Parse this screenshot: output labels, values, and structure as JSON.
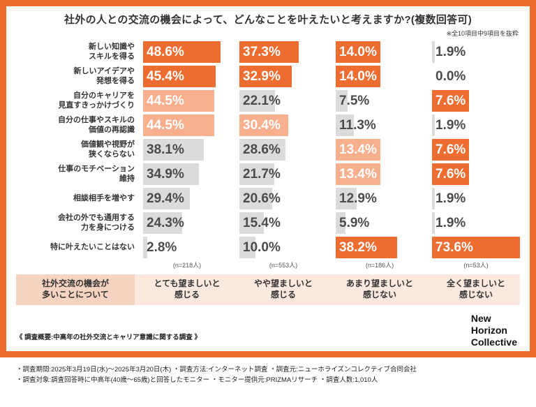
{
  "title": "社外の人との交流の機会によって、どんなことを叶えたいと考えますか?(複数回答可)",
  "note": "※全10項目中9項目を抜粋",
  "chart_data": {
    "type": "bar",
    "orientation": "horizontal",
    "unit": "%",
    "xlim": [
      0,
      55
    ],
    "grid": false,
    "categories": [
      [
        "新しい知識や",
        "スキルを得る"
      ],
      [
        "新しいアイデアや",
        "発想を得る"
      ],
      [
        "自分のキャリアを",
        "見直すきっかけづくり"
      ],
      [
        "自分の仕事やスキルの",
        "価値の再認識"
      ],
      [
        "価値観や視野が",
        "狭くならない"
      ],
      [
        "仕事のモチベーション",
        "維持"
      ],
      [
        "相談相手を増やす"
      ],
      [
        "会社の外でも通用する",
        "力を身につける"
      ],
      [
        "特に叶えたいことはない"
      ]
    ],
    "row_header_title": [
      "社外交流の機会が",
      "多いことについて"
    ],
    "series": [
      {
        "name": [
          "とても望ましいと",
          "感じる"
        ],
        "n_label": "(n=218人)",
        "values": [
          48.6,
          45.4,
          44.5,
          44.5,
          38.1,
          34.9,
          29.4,
          24.3,
          2.8
        ],
        "styles": [
          "dark",
          "dark",
          "light",
          "light",
          "gray",
          "gray",
          "gray",
          "gray",
          "gray"
        ]
      },
      {
        "name": [
          "やや望ましいと",
          "感じる"
        ],
        "n_label": "(n=553人)",
        "values": [
          37.3,
          32.9,
          22.1,
          30.4,
          28.6,
          21.7,
          20.6,
          15.4,
          10.0
        ],
        "styles": [
          "dark",
          "dark",
          "gray",
          "light",
          "gray",
          "gray",
          "gray",
          "gray",
          "gray"
        ]
      },
      {
        "name": [
          "あまり望ましいと",
          "感じない"
        ],
        "n_label": "(n=186人)",
        "values": [
          14.0,
          14.0,
          7.5,
          11.3,
          13.4,
          13.4,
          12.9,
          5.9,
          38.2
        ],
        "styles": [
          "dark",
          "dark",
          "gray",
          "gray",
          "light",
          "light",
          "gray",
          "gray",
          "dark"
        ]
      },
      {
        "name": [
          "全く望ましいと",
          "感じない"
        ],
        "n_label": "(n=53人)",
        "values": [
          1.9,
          0.0,
          7.6,
          1.9,
          7.6,
          7.6,
          1.9,
          1.9,
          73.6
        ],
        "styles": [
          "gray",
          "none",
          "dark",
          "gray",
          "dark",
          "dark",
          "gray",
          "gray",
          "dark"
        ]
      }
    ]
  },
  "colors": {
    "frame": "#EC6C2D",
    "bar_dark": "#ED6C30",
    "bar_light": "#F7AF8D",
    "bar_gray": "#DBDBDB",
    "footer_bg": "#FBE8DF",
    "footer_first_bg": "#F7D3C1"
  },
  "survey": {
    "heading": "《 調査概要:中高年の社外交流とキャリア意識に関する調査 》",
    "lines": [
      "・調査期間:2025年3月19日(水)〜2025年3月20日(木) ・調査方法:インターネット調査 ・調査元:ニューホライズンコレクティブ合同会社",
      "・調査対象:調査回答時に中高年(40歳〜65歳)と回答したモニター ・モニター提供元:PRIZMAリサーチ ・調査人数:1,010人"
    ]
  },
  "logo_lines": [
    "New",
    "Horizon",
    "Collective"
  ]
}
